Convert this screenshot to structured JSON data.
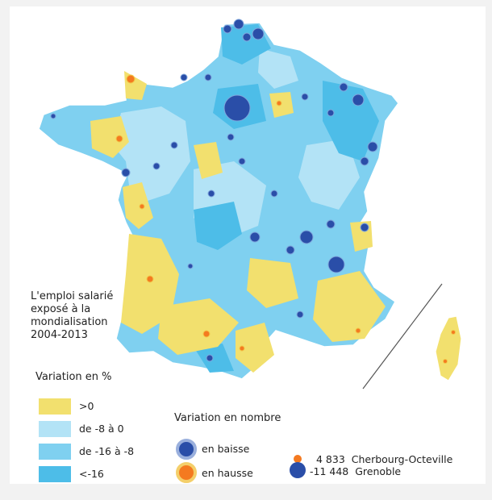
{
  "map": {
    "title": "L'emploi salarié\nexposé à la\nmondialisation\n2004-2013",
    "legend_pct": {
      "title": "Variation en %",
      "items": [
        {
          "label": ">0",
          "color": "#f2e06e"
        },
        {
          "label": "de -8 à 0",
          "color": "#b3e3f6"
        },
        {
          "label": "de -16 à -8",
          "color": "#7fd0f0"
        },
        {
          "label": "<-16",
          "color": "#4dbde8"
        }
      ]
    },
    "legend_nombre": {
      "title": "Variation en nombre",
      "baisse_label": "en baisse",
      "hausse_label": "en hausse",
      "baisse_color": "#2a4ea8",
      "hausse_color": "#f47a20"
    },
    "extremes": {
      "max_value": "4 833",
      "max_city": "Cherbourg-Octeville",
      "min_value": "-11 448",
      "min_city": "Grenoble"
    },
    "colors": {
      "yellow": "#f2e06e",
      "light_blue": "#b3e3f6",
      "mid_blue": "#7fd0f0",
      "blue": "#4dbde8",
      "dot_blue": "#2a4ea8",
      "dot_orange": "#f47a20"
    }
  }
}
